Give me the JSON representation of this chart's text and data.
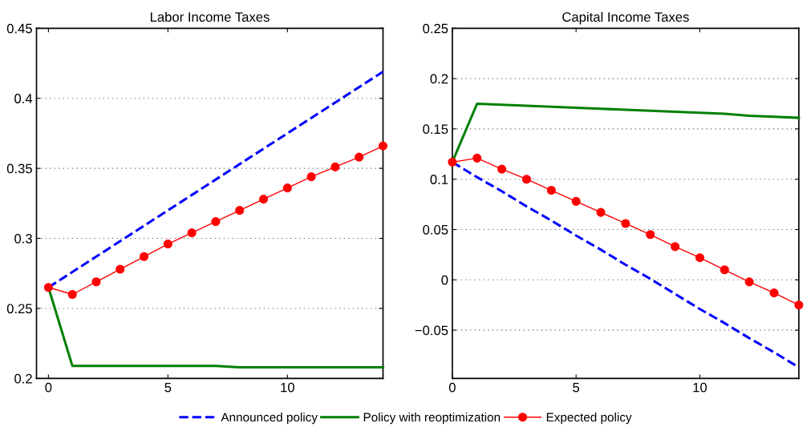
{
  "chart_data": [
    {
      "type": "line",
      "title": "Labor Income Taxes",
      "x": [
        0,
        1,
        2,
        3,
        4,
        5,
        6,
        7,
        8,
        9,
        10,
        11,
        12,
        13,
        14
      ],
      "xlim": [
        -0.5,
        14
      ],
      "xticks": [
        0,
        5,
        10
      ],
      "ylim": [
        0.2,
        0.45
      ],
      "yticks": [
        0.2,
        0.25,
        0.3,
        0.35,
        0.4,
        0.45
      ],
      "grid": "y",
      "legend": "bottom",
      "series": [
        {
          "name": "Announced policy",
          "color": "#0000ff",
          "line_style": "dashed",
          "marker": "none",
          "values": [
            0.265,
            0.276,
            0.287,
            0.298,
            0.309,
            0.32,
            0.331,
            0.342,
            0.353,
            0.364,
            0.375,
            0.386,
            0.397,
            0.408,
            0.419
          ]
        },
        {
          "name": "Policy with reoptimization",
          "color": "#008000",
          "line_style": "solid",
          "marker": "none",
          "values": [
            0.265,
            0.209,
            0.209,
            0.209,
            0.209,
            0.209,
            0.209,
            0.209,
            0.208,
            0.208,
            0.208,
            0.208,
            0.208,
            0.208,
            0.208
          ]
        },
        {
          "name": "Expected policy",
          "color": "#ff0000",
          "line_style": "solid",
          "marker": "circle",
          "values": [
            0.265,
            0.26,
            0.269,
            0.278,
            0.287,
            0.296,
            0.304,
            0.312,
            0.32,
            0.328,
            0.336,
            0.344,
            0.351,
            0.358,
            0.366
          ]
        }
      ]
    },
    {
      "type": "line",
      "title": "Capital Income Taxes",
      "x": [
        0,
        1,
        2,
        3,
        4,
        5,
        6,
        7,
        8,
        9,
        10,
        11,
        12,
        13,
        14
      ],
      "xlim": [
        0,
        14
      ],
      "xticks": [
        0,
        5,
        10
      ],
      "ylim": [
        -0.098,
        0.25
      ],
      "yticks": [
        {
          "value": -0.05,
          "label": "−0.05"
        },
        0,
        0.05,
        0.1,
        0.15,
        0.2,
        0.25
      ],
      "grid": "y",
      "series": [
        {
          "color": "#0000ff",
          "line_style": "dashed",
          "marker": "none",
          "values": [
            0.117,
            0.102,
            0.088,
            0.073,
            0.059,
            0.044,
            0.03,
            0.015,
            0.001,
            -0.014,
            -0.029,
            -0.043,
            -0.058,
            -0.072,
            -0.087
          ]
        },
        {
          "color": "#008000",
          "line_style": "solid",
          "marker": "none",
          "values": [
            0.117,
            0.175,
            0.174,
            0.173,
            0.172,
            0.171,
            0.17,
            0.169,
            0.168,
            0.167,
            0.166,
            0.165,
            0.163,
            0.162,
            0.161
          ]
        },
        {
          "color": "#ff0000",
          "line_style": "solid",
          "marker": "circle",
          "values": [
            0.117,
            0.121,
            0.11,
            0.1,
            0.089,
            0.078,
            0.067,
            0.056,
            0.045,
            0.033,
            0.022,
            0.01,
            -0.002,
            -0.013,
            -0.025
          ]
        }
      ]
    }
  ]
}
